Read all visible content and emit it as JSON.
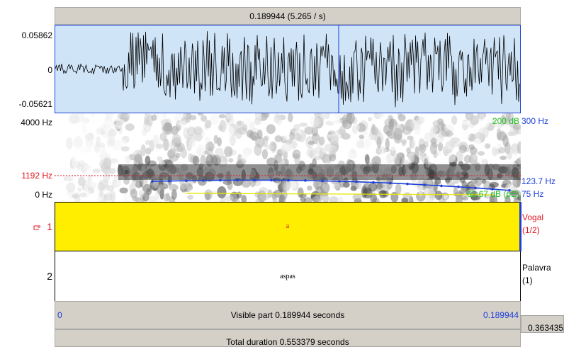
{
  "top_bar": {
    "selection": "0.189944 (5.265 / s)"
  },
  "waveform": {
    "max_label": "0.05862",
    "zero_label": "0",
    "min_label": "-0.05621"
  },
  "spectrogram": {
    "top_freq": "4000 Hz",
    "cursor_freq": "1192 Hz",
    "bottom_freq": "0 Hz",
    "intensity_top": "200 dB",
    "pitch_top": "300 Hz",
    "pitch_value": "123.7 Hz",
    "intensity_value": "62.67 dB (pE)",
    "pitch_bottom": "75 Hz"
  },
  "tiers": [
    {
      "number": "1",
      "interval_text": "a",
      "name": "Vogal",
      "count": "(1/2)"
    },
    {
      "number": "2",
      "interval_text": "aspas",
      "name": "Palavra",
      "count": "(1)"
    }
  ],
  "visible_bar": {
    "start": "0",
    "label": "Visible part 0.189944 seconds",
    "end": "0.189944",
    "window_end": "0.363435"
  },
  "total_bar": {
    "label": "Total duration 0.553379 seconds"
  }
}
